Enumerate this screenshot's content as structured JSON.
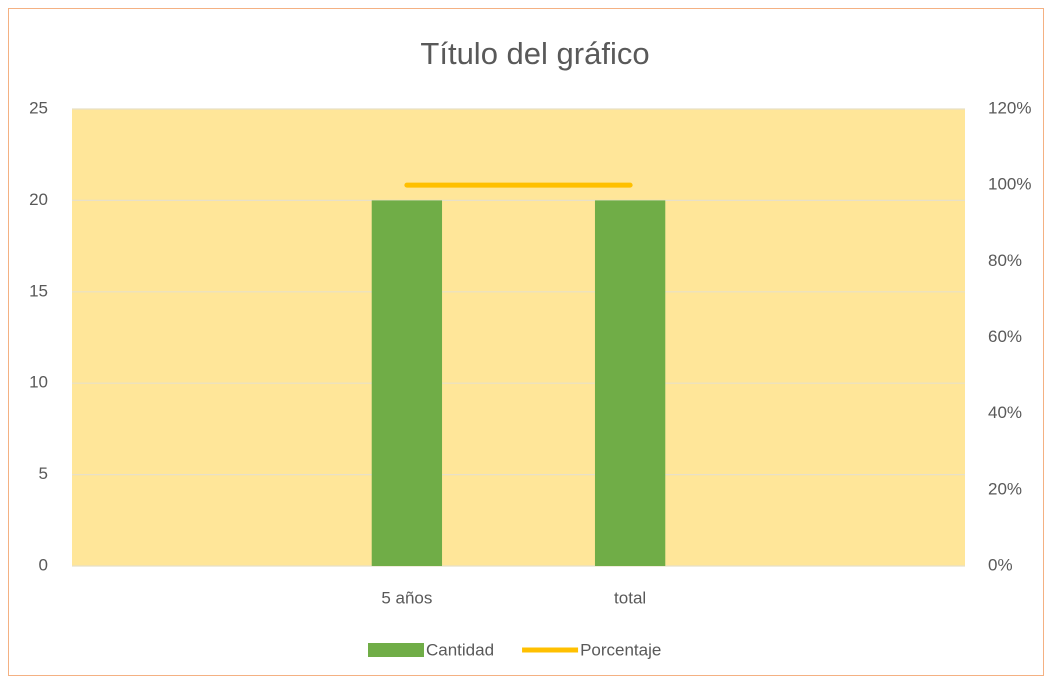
{
  "chart_data": {
    "type": "bar",
    "title": "Título del gráfico",
    "categories": [
      null,
      "5 años",
      "total",
      null
    ],
    "series": [
      {
        "name": "Cantidad",
        "type": "bar",
        "color": "#70ad47",
        "values": [
          null,
          20,
          20,
          null
        ]
      },
      {
        "name": "Porcentaje",
        "type": "line",
        "axis": "y2",
        "color": "#ffc000",
        "values": [
          null,
          100,
          100,
          null
        ]
      }
    ],
    "ylim": [
      0,
      25
    ],
    "yticks": [
      0,
      5,
      10,
      15,
      20,
      25
    ],
    "y2lim": [
      0,
      120
    ],
    "y2ticks": [
      {
        "value": 0,
        "label": "0%"
      },
      {
        "value": 20,
        "label": "20%"
      },
      {
        "value": 40,
        "label": "40%"
      },
      {
        "value": 60,
        "label": "60%"
      },
      {
        "value": 80,
        "label": "80%"
      },
      {
        "value": 100,
        "label": "100%"
      },
      {
        "value": 120,
        "label": "120%"
      }
    ],
    "grid": true,
    "plot_background": "#ffe699",
    "legend": "bottom"
  }
}
